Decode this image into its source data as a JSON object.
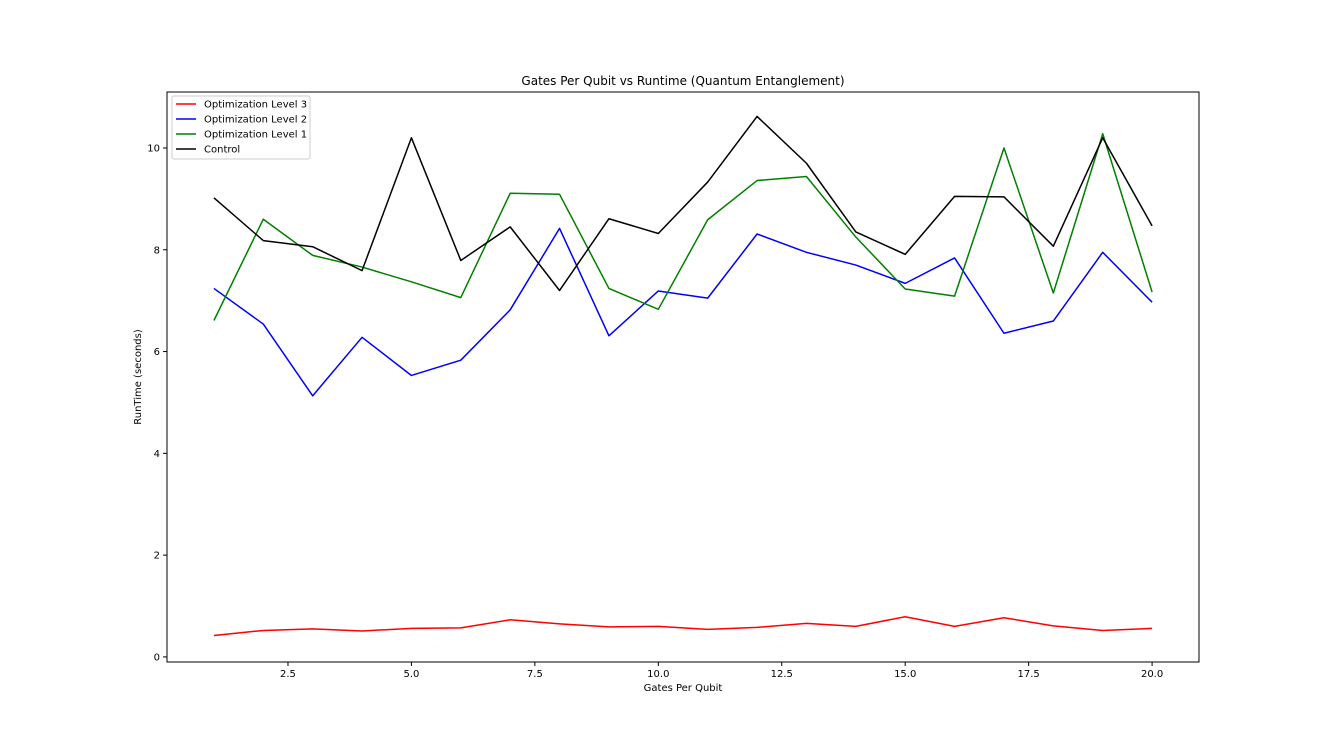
{
  "chart_data": {
    "type": "line",
    "title": "Gates Per Qubit vs Runtime (Quantum Entanglement)",
    "xlabel": "Gates Per Qubit",
    "ylabel": "RunTime (seconds)",
    "xlim": [
      0.05,
      20.95
    ],
    "ylim": [
      -0.1,
      11.1
    ],
    "xticks": [
      2.5,
      5.0,
      7.5,
      10.0,
      12.5,
      15.0,
      17.5,
      20.0
    ],
    "xtick_labels": [
      "2.5",
      "5.0",
      "7.5",
      "10.0",
      "12.5",
      "15.0",
      "17.5",
      "20.0"
    ],
    "yticks": [
      0,
      2,
      4,
      6,
      8,
      10
    ],
    "ytick_labels": [
      "0",
      "2",
      "4",
      "6",
      "8",
      "10"
    ],
    "grid": false,
    "legend_position": "top-left",
    "x": [
      1,
      2,
      3,
      4,
      5,
      6,
      7,
      8,
      9,
      10,
      11,
      12,
      13,
      14,
      15,
      16,
      17,
      18,
      19,
      20
    ],
    "series": [
      {
        "name": "Optimization Level 3",
        "color": "#ff0000",
        "values": [
          0.42,
          0.52,
          0.55,
          0.51,
          0.56,
          0.57,
          0.73,
          0.65,
          0.59,
          0.6,
          0.54,
          0.58,
          0.66,
          0.6,
          0.79,
          0.6,
          0.77,
          0.61,
          0.52,
          0.56
        ]
      },
      {
        "name": "Optimization Level 2",
        "color": "#0000ff",
        "values": [
          7.24,
          6.54,
          5.13,
          6.28,
          5.53,
          5.83,
          6.82,
          8.42,
          6.31,
          7.19,
          7.05,
          8.31,
          7.95,
          7.7,
          7.34,
          7.84,
          6.36,
          6.6,
          7.95,
          6.97
        ]
      },
      {
        "name": "Optimization Level 1",
        "color": "#008000",
        "values": [
          6.61,
          8.6,
          7.89,
          7.66,
          7.37,
          7.06,
          9.11,
          9.09,
          7.24,
          6.83,
          8.59,
          9.36,
          9.44,
          8.25,
          7.23,
          7.09,
          10.0,
          7.15,
          10.28,
          7.17
        ]
      },
      {
        "name": "Control",
        "color": "#000000",
        "values": [
          9.02,
          8.18,
          8.06,
          7.59,
          10.2,
          7.79,
          8.45,
          7.2,
          8.61,
          8.32,
          9.33,
          10.62,
          9.7,
          8.35,
          7.91,
          9.05,
          9.04,
          8.07,
          10.2,
          8.47
        ]
      }
    ]
  }
}
